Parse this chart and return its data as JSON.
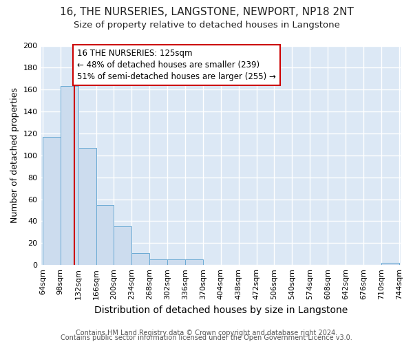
{
  "title1": "16, THE NURSERIES, LANGSTONE, NEWPORT, NP18 2NT",
  "title2": "Size of property relative to detached houses in Langstone",
  "xlabel": "Distribution of detached houses by size in Langstone",
  "ylabel": "Number of detached properties",
  "footnote1": "Contains HM Land Registry data © Crown copyright and database right 2024.",
  "footnote2": "Contains public sector information licensed under the Open Government Licence v3.0.",
  "bin_edges": [
    64,
    98,
    132,
    166,
    200,
    234,
    268,
    302,
    336,
    370,
    404,
    438,
    472,
    506,
    540,
    574,
    608,
    642,
    676,
    710,
    744
  ],
  "bar_heights": [
    117,
    163,
    107,
    55,
    35,
    11,
    5,
    5,
    5,
    0,
    0,
    0,
    0,
    0,
    0,
    0,
    0,
    0,
    0,
    2
  ],
  "bar_color": "#ccdcee",
  "bar_edge_color": "#6aaad4",
  "property_size": 125,
  "red_line_color": "#cc0000",
  "annotation_text": "16 THE NURSERIES: 125sqm\n← 48% of detached houses are smaller (239)\n51% of semi-detached houses are larger (255) →",
  "annotation_box_color": "#ffffff",
  "annotation_box_edge_color": "#cc0000",
  "ylim": [
    0,
    200
  ],
  "background_color": "#dce8f5",
  "grid_color": "#ffffff",
  "fig_background": "#ffffff",
  "title1_fontsize": 11,
  "title2_fontsize": 9.5,
  "xlabel_fontsize": 10,
  "ylabel_fontsize": 9,
  "tick_fontsize": 8,
  "annotation_fontsize": 8.5,
  "footnote_fontsize": 7
}
